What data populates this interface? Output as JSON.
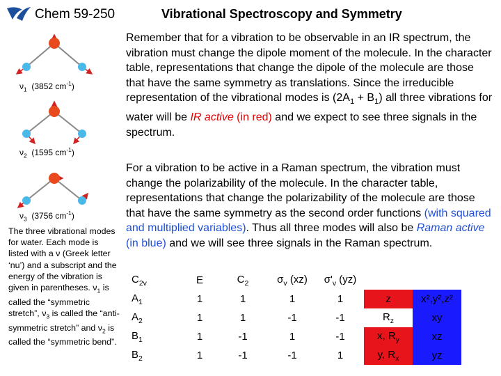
{
  "header": {
    "course": "Chem 59-250",
    "title": "Vibrational Spectroscopy and Symmetry"
  },
  "p1": {
    "a": "Remember that for a vibration to be observable in an IR spectrum, the vibration must change the dipole moment of the molecule. In the character table, representations that change the dipole of the molecule are those that have the same symmetry as translations.  Since the irreducible representation of the vibrational modes is (2A",
    "sub1": "1",
    "b": " + B",
    "sub2": "1",
    "c": ") all three vibrations for water will be ",
    "ir": "IR active",
    "d": " (in red)",
    "e": " and we expect to see three signals in the spectrum."
  },
  "p2": {
    "a": "For a vibration to be active in a Raman spectrum, the vibration must change the polarizability of the molecule. In the character table, representations that change the polarizability of the molecule are those that have the same symmetry as the second order functions ",
    "blue1": "(with squared and multiplied variables)",
    "b": ".  Thus all three modes will also be ",
    "raman": "Raman active",
    "blue2": " (in blue)",
    "c": " and we will see three signals in the Raman spectrum."
  },
  "caption": {
    "a": "The three vibrational modes for water.  Each mode is listed with a ν (Greek letter ‘nu’) and a subscript and the energy of the vibration is given in parentheses. ",
    "nu1": "ν",
    "s1": "1",
    "b": " is called the “symmetric stretch”, ",
    "nu3": "ν",
    "s3": "3",
    "c": " is called the “anti-symmetric stretch” and ",
    "nu2": "ν",
    "s2": "2",
    "d": " is called the “symmetric bend”."
  },
  "modes": [
    {
      "nu": "ν",
      "sub": "1",
      "energy": "(3852  cm",
      "sup": "-1",
      "close": ")"
    },
    {
      "nu": "ν",
      "sub": "2",
      "energy": "(1595 cm",
      "sup": "-1",
      "close": ")"
    },
    {
      "nu": "ν",
      "sub": "3",
      "energy": "(3756  cm",
      "sup": "-1",
      "close": ")"
    }
  ],
  "table": {
    "header": {
      "group": "C",
      "group_sub": "2v",
      "E": "E",
      "c2": "C",
      "c2_sub": "2",
      "sv": "σ",
      "sv_sub": "v",
      "sv_tail": " (xz)",
      "sv2": "σ'",
      "sv2_sub": "v",
      "sv2_tail": " (yz)"
    },
    "rows": [
      {
        "irrep": "A",
        "sub": "1",
        "E": "1",
        "C2": "1",
        "sv": "1",
        "sv2": "1",
        "lin": "z",
        "quad": "x²,y²,z²"
      },
      {
        "irrep": "A",
        "sub": "2",
        "E": "1",
        "C2": "1",
        "sv": "-1",
        "sv2": "-1",
        "lin": "R",
        "lin_sub": "z",
        "quad": "xy"
      },
      {
        "irrep": "B",
        "sub": "1",
        "E": "1",
        "C2": "-1",
        "sv": "1",
        "sv2": "-1",
        "lin": "x, R",
        "lin_sub": "y",
        "quad": "xz"
      },
      {
        "irrep": "B",
        "sub": "2",
        "E": "1",
        "C2": "-1",
        "sv": "-1",
        "sv2": "1",
        "lin": "y, R",
        "lin_sub": "x",
        "quad": "yz"
      }
    ]
  },
  "colors": {
    "ir": "#e8141b",
    "raman": "#1a1aff",
    "oxygen": "#e8491d",
    "hydrogen": "#4ab8e8",
    "arrow": "#d42020"
  }
}
